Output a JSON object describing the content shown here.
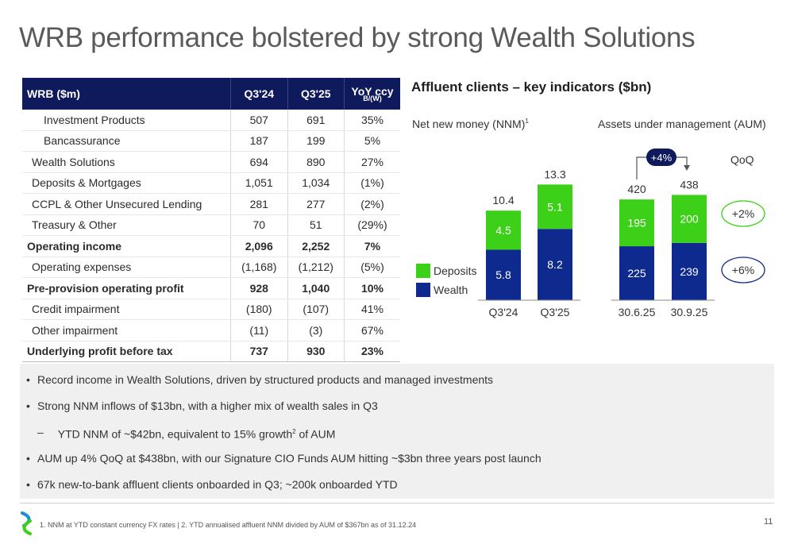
{
  "title": "WRB performance bolstered by strong Wealth Solutions",
  "table": {
    "headers": [
      "WRB ($m)",
      "Q3'24",
      "Q3'25",
      "YoY ccy",
      "B/(W)"
    ],
    "rows": [
      {
        "label": "Investment Products",
        "q324": "507",
        "q325": "691",
        "yoy": "35%"
      },
      {
        "label": "Bancassurance",
        "q324": "187",
        "q325": "199",
        "yoy": "5%"
      },
      {
        "label": "Wealth Solutions",
        "q324": "694",
        "q325": "890",
        "yoy": "27%"
      },
      {
        "label": "Deposits & Mortgages",
        "q324": "1,051",
        "q325": "1,034",
        "yoy": "(1%)"
      },
      {
        "label": "CCPL & Other Unsecured Lending",
        "q324": "281",
        "q325": "277",
        "yoy": "(2%)"
      },
      {
        "label": "Treasury & Other",
        "q324": "70",
        "q325": "51",
        "yoy": "(29%)"
      },
      {
        "label": "Operating income",
        "q324": "2,096",
        "q325": "2,252",
        "yoy": "7%"
      },
      {
        "label": "Operating expenses",
        "q324": "(1,168)",
        "q325": "(1,212)",
        "yoy": "(5%)"
      },
      {
        "label": "Pre-provision operating profit",
        "q324": "928",
        "q325": "1,040",
        "yoy": "10%"
      },
      {
        "label": "Credit impairment",
        "q324": "(180)",
        "q325": "(107)",
        "yoy": "41%"
      },
      {
        "label": "Other impairment",
        "q324": "(11)",
        "q325": "(3)",
        "yoy": "67%"
      },
      {
        "label": "Underlying profit before tax",
        "q324": "737",
        "q325": "930",
        "yoy": "23%"
      }
    ]
  },
  "chart_data": [
    {
      "type": "bar",
      "stacked": true,
      "title": "Affluent clients – key indicators ($bn)",
      "subtitle": "Net new money (NNM)",
      "subtitle_sup": "1",
      "categories": [
        "Q3'24",
        "Q3'25"
      ],
      "series": [
        {
          "name": "Wealth",
          "values": [
            5.8,
            8.2
          ],
          "color": "#0f2a8f"
        },
        {
          "name": "Deposits",
          "values": [
            4.5,
            5.1
          ],
          "color": "#3cd118"
        }
      ],
      "totals": [
        "10.4",
        "13.3"
      ],
      "labels": {
        "Wealth": [
          "5.8",
          "8.2"
        ],
        "Deposits": [
          "4.5",
          "5.1"
        ]
      },
      "legend": [
        "Deposits",
        "Wealth"
      ]
    },
    {
      "type": "bar",
      "stacked": true,
      "subtitle": "Assets under management (AUM)",
      "categories": [
        "30.6.25",
        "30.9.25"
      ],
      "series": [
        {
          "name": "Wealth",
          "values": [
            225,
            239
          ],
          "color": "#0f2a8f"
        },
        {
          "name": "Deposits",
          "values": [
            195,
            200
          ],
          "color": "#3cd118"
        }
      ],
      "totals": [
        "420",
        "438"
      ],
      "labels": {
        "Wealth": [
          "225",
          "239"
        ],
        "Deposits": [
          "195",
          "200"
        ]
      },
      "change_badge": "+4%",
      "qoq_label": "QoQ",
      "qoq": {
        "Deposits": "+2%",
        "Wealth": "+6%"
      }
    }
  ],
  "bullets": [
    {
      "text": "Record income in Wealth Solutions, driven by structured products and managed investments",
      "sub": false
    },
    {
      "text": "Strong NNM inflows of $13bn, with a higher mix of wealth sales in Q3",
      "sub": false
    },
    {
      "text": "YTD NNM of ~$42bn, equivalent to 15% growth",
      "sup": "2",
      "tail": " of AUM",
      "sub": true
    },
    {
      "text": "AUM up 4% QoQ at $438bn, with our Signature CIO Funds AUM hitting ~$3bn three years post launch",
      "sub": false
    },
    {
      "text": "67k new-to-bank affluent clients onboarded in Q3; ~200k onboarded YTD",
      "sub": false
    }
  ],
  "footnote": "1. NNM at YTD constant currency FX rates | 2. YTD annualised affluent NNM divided by AUM of $367bn as of 31.12.24",
  "page_number": "11",
  "colors": {
    "navy": "#0f1a5c",
    "wealth": "#0f2a8f",
    "deposits": "#3cd118"
  }
}
